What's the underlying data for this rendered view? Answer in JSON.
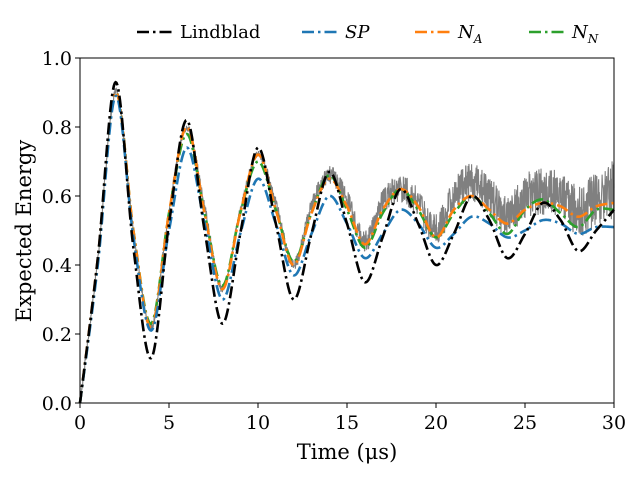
{
  "chart_data": {
    "type": "line",
    "xlabel": "Time (μs)",
    "ylabel": "Expected Energy",
    "xlim": [
      0,
      30
    ],
    "ylim": [
      0,
      1
    ],
    "xticks": [
      0,
      5,
      10,
      15,
      20,
      25,
      30
    ],
    "yticks": [
      0.0,
      0.2,
      0.4,
      0.6,
      0.8,
      1.0
    ],
    "xtick_labels": [
      "0",
      "5",
      "10",
      "15",
      "20",
      "25",
      "30"
    ],
    "ytick_labels": [
      "0.0",
      "0.2",
      "0.4",
      "0.6",
      "0.8",
      "1.0"
    ],
    "grid": false,
    "legend_position": "top, outside plot, single row",
    "series": [
      {
        "name": "Lindblad",
        "color": "#000000",
        "style": "dashdot",
        "x": [
          0,
          1,
          2,
          3,
          4,
          5,
          6,
          7,
          8,
          9,
          10,
          11,
          12,
          13,
          14,
          15,
          16,
          17,
          18,
          19,
          20,
          21,
          22,
          23,
          24,
          25,
          26,
          27,
          28,
          29,
          30
        ],
        "y": [
          0.0,
          0.42,
          0.93,
          0.45,
          0.13,
          0.52,
          0.82,
          0.5,
          0.23,
          0.49,
          0.74,
          0.52,
          0.3,
          0.49,
          0.67,
          0.52,
          0.35,
          0.48,
          0.62,
          0.52,
          0.4,
          0.49,
          0.6,
          0.53,
          0.42,
          0.49,
          0.58,
          0.53,
          0.44,
          0.5,
          0.56
        ]
      },
      {
        "name": "SP",
        "color": "#1f77b4",
        "style": "dashdot",
        "x": [
          0,
          1,
          2,
          3,
          4,
          5,
          6,
          7,
          8,
          9,
          10,
          11,
          12,
          13,
          14,
          15,
          16,
          17,
          18,
          19,
          20,
          21,
          22,
          23,
          24,
          25,
          26,
          27,
          28,
          29,
          30
        ],
        "y": [
          0.0,
          0.4,
          0.89,
          0.48,
          0.21,
          0.5,
          0.74,
          0.52,
          0.3,
          0.49,
          0.65,
          0.52,
          0.37,
          0.49,
          0.6,
          0.52,
          0.42,
          0.49,
          0.56,
          0.52,
          0.45,
          0.49,
          0.54,
          0.52,
          0.48,
          0.5,
          0.53,
          0.52,
          0.49,
          0.51,
          0.51
        ]
      },
      {
        "name": "N_A",
        "color": "#ff7f0e",
        "style": "dashdot",
        "x": [
          0,
          1,
          2,
          3,
          4,
          5,
          6,
          7,
          8,
          9,
          10,
          11,
          12,
          13,
          14,
          15,
          16,
          17,
          18,
          19,
          20,
          21,
          22,
          23,
          24,
          25,
          26,
          27,
          28,
          29,
          30
        ],
        "y": [
          0.0,
          0.42,
          0.9,
          0.5,
          0.22,
          0.55,
          0.8,
          0.55,
          0.33,
          0.55,
          0.72,
          0.56,
          0.4,
          0.55,
          0.65,
          0.57,
          0.46,
          0.56,
          0.62,
          0.57,
          0.48,
          0.56,
          0.6,
          0.56,
          0.52,
          0.56,
          0.58,
          0.57,
          0.54,
          0.57,
          0.58
        ]
      },
      {
        "name": "N_N",
        "color": "#2ca02c",
        "style": "dashdot",
        "x": [
          0,
          1,
          2,
          3,
          4,
          5,
          6,
          7,
          8,
          9,
          10,
          11,
          12,
          13,
          14,
          15,
          16,
          17,
          18,
          19,
          20,
          21,
          22,
          23,
          24,
          25,
          26,
          27,
          28,
          29,
          30
        ],
        "y": [
          0.0,
          0.41,
          0.9,
          0.5,
          0.23,
          0.55,
          0.78,
          0.55,
          0.34,
          0.55,
          0.7,
          0.56,
          0.41,
          0.55,
          0.66,
          0.56,
          0.45,
          0.55,
          0.62,
          0.56,
          0.48,
          0.55,
          0.6,
          0.55,
          0.49,
          0.56,
          0.59,
          0.55,
          0.51,
          0.56,
          0.56
        ]
      },
      {
        "name": "noisy simulation",
        "color": "#808080",
        "style": "noisy",
        "x": [
          0,
          1,
          2,
          3,
          4,
          5,
          6,
          7,
          8,
          9,
          10,
          11,
          12,
          13,
          14,
          15,
          16,
          17,
          18,
          19,
          20,
          21,
          22,
          23,
          24,
          25,
          26,
          27,
          28,
          29,
          30
        ],
        "y": [
          0.0,
          0.42,
          0.9,
          0.5,
          0.22,
          0.56,
          0.8,
          0.57,
          0.33,
          0.56,
          0.72,
          0.58,
          0.4,
          0.57,
          0.66,
          0.59,
          0.47,
          0.58,
          0.62,
          0.58,
          0.5,
          0.6,
          0.64,
          0.6,
          0.54,
          0.6,
          0.61,
          0.6,
          0.56,
          0.59,
          0.62
        ]
      }
    ],
    "legend": [
      {
        "label": "Lindblad",
        "color": "#000000"
      },
      {
        "label": "SP",
        "color": "#1f77b4"
      },
      {
        "label": "N",
        "sub": "A",
        "color": "#ff7f0e"
      },
      {
        "label": "N",
        "sub": "N",
        "color": "#2ca02c"
      }
    ]
  }
}
